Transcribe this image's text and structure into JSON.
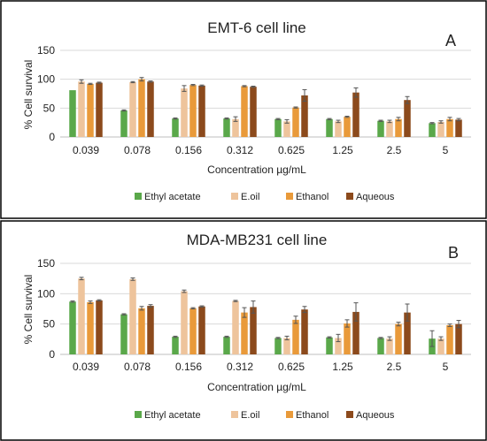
{
  "colors": {
    "ethyl_acetate": "#5aa84a",
    "e_oil": "#eec49c",
    "ethanol": "#e99a3a",
    "aqueous": "#8c4a1c",
    "grid": "#d9d9d9",
    "border": "#000000"
  },
  "chart_data": [
    {
      "type": "bar",
      "title": "EMT-6 cell line",
      "panel_label": "A",
      "xlabel": "Concentration µg/mL",
      "ylabel": "% Cell survival",
      "ylim": [
        0,
        150
      ],
      "yticks": [
        "0",
        "50",
        "100",
        "150"
      ],
      "grid": true,
      "legend_position": "bottom",
      "categories": [
        "0.039",
        "0.078",
        "0.156",
        "0.312",
        "0.625",
        "1.25",
        "2.5",
        "5"
      ],
      "series": [
        {
          "name": "Ethyl acetate",
          "color_key": "ethyl_acetate",
          "values": [
            81,
            46,
            32,
            32,
            31,
            31,
            28,
            24
          ],
          "errors": [
            0,
            1,
            1,
            1,
            1,
            1,
            1,
            1
          ]
        },
        {
          "name": "E.oil",
          "color_key": "e_oil",
          "values": [
            96,
            95,
            84,
            31,
            27,
            27,
            27,
            26
          ],
          "errors": [
            3,
            1,
            5,
            4,
            3,
            2,
            2,
            2
          ]
        },
        {
          "name": "Ethanol",
          "color_key": "ethanol",
          "values": [
            92,
            100,
            90,
            88,
            51,
            35,
            31,
            31
          ],
          "errors": [
            1,
            3,
            1,
            1,
            1,
            1,
            3,
            3
          ]
        },
        {
          "name": "Aqueous",
          "color_key": "aqueous",
          "values": [
            94,
            96,
            89,
            87,
            72,
            77,
            64,
            30
          ],
          "errors": [
            1,
            1,
            1,
            1,
            10,
            8,
            6,
            2
          ]
        }
      ]
    },
    {
      "type": "bar",
      "title": "MDA-MB231 cell line",
      "panel_label": "B",
      "xlabel": "Concentration µg/mL",
      "ylabel": "% Cell survival",
      "ylim": [
        0,
        150
      ],
      "yticks": [
        "0",
        "50",
        "100",
        "150"
      ],
      "grid": true,
      "legend_position": "bottom",
      "categories": [
        "0.039",
        "0.078",
        "0.156",
        "0.312",
        "0.625",
        "1.25",
        "2.5",
        "5"
      ],
      "series": [
        {
          "name": "Ethyl acetate",
          "color_key": "ethyl_acetate",
          "values": [
            87,
            66,
            29,
            29,
            27,
            28,
            27,
            26
          ],
          "errors": [
            1,
            1,
            1,
            1,
            1,
            1,
            1,
            13
          ]
        },
        {
          "name": "E.oil",
          "color_key": "e_oil",
          "values": [
            125,
            124,
            104,
            88,
            27,
            27,
            26,
            26
          ],
          "errors": [
            2,
            2,
            2,
            1,
            3,
            6,
            3,
            3
          ]
        },
        {
          "name": "Ethanol",
          "color_key": "ethanol",
          "values": [
            86,
            76,
            76,
            69,
            57,
            51,
            50,
            48
          ],
          "errors": [
            2,
            3,
            1,
            8,
            6,
            6,
            3,
            2
          ]
        },
        {
          "name": "Aqueous",
          "color_key": "aqueous",
          "values": [
            89,
            80,
            79,
            78,
            74,
            70,
            69,
            50
          ],
          "errors": [
            1,
            2,
            1,
            10,
            5,
            15,
            14,
            6
          ]
        }
      ]
    }
  ]
}
